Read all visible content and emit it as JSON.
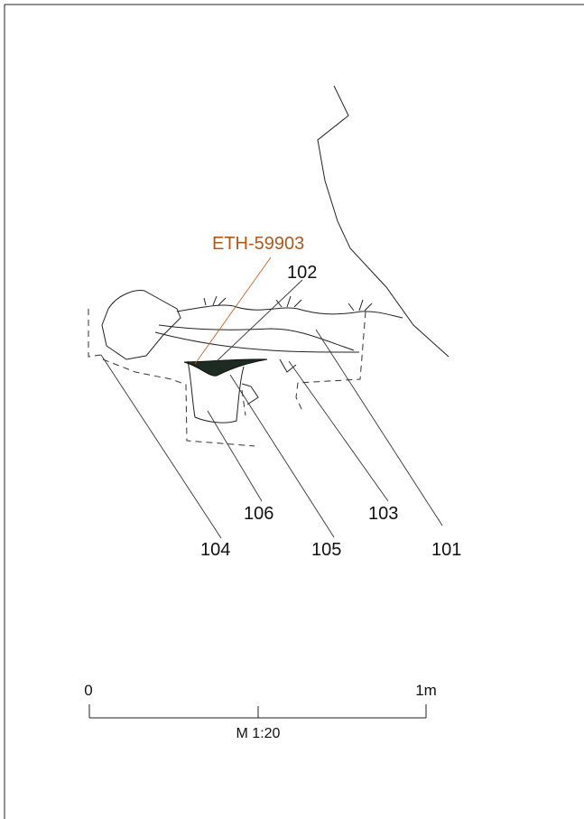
{
  "labels": {
    "sample": "ETH-59903",
    "l102": "102",
    "l106": "106",
    "l103": "103",
    "l104": "104",
    "l105": "105",
    "l101": "101"
  },
  "scale": {
    "start": "0",
    "end": "1m",
    "ratio": "M 1:20"
  }
}
